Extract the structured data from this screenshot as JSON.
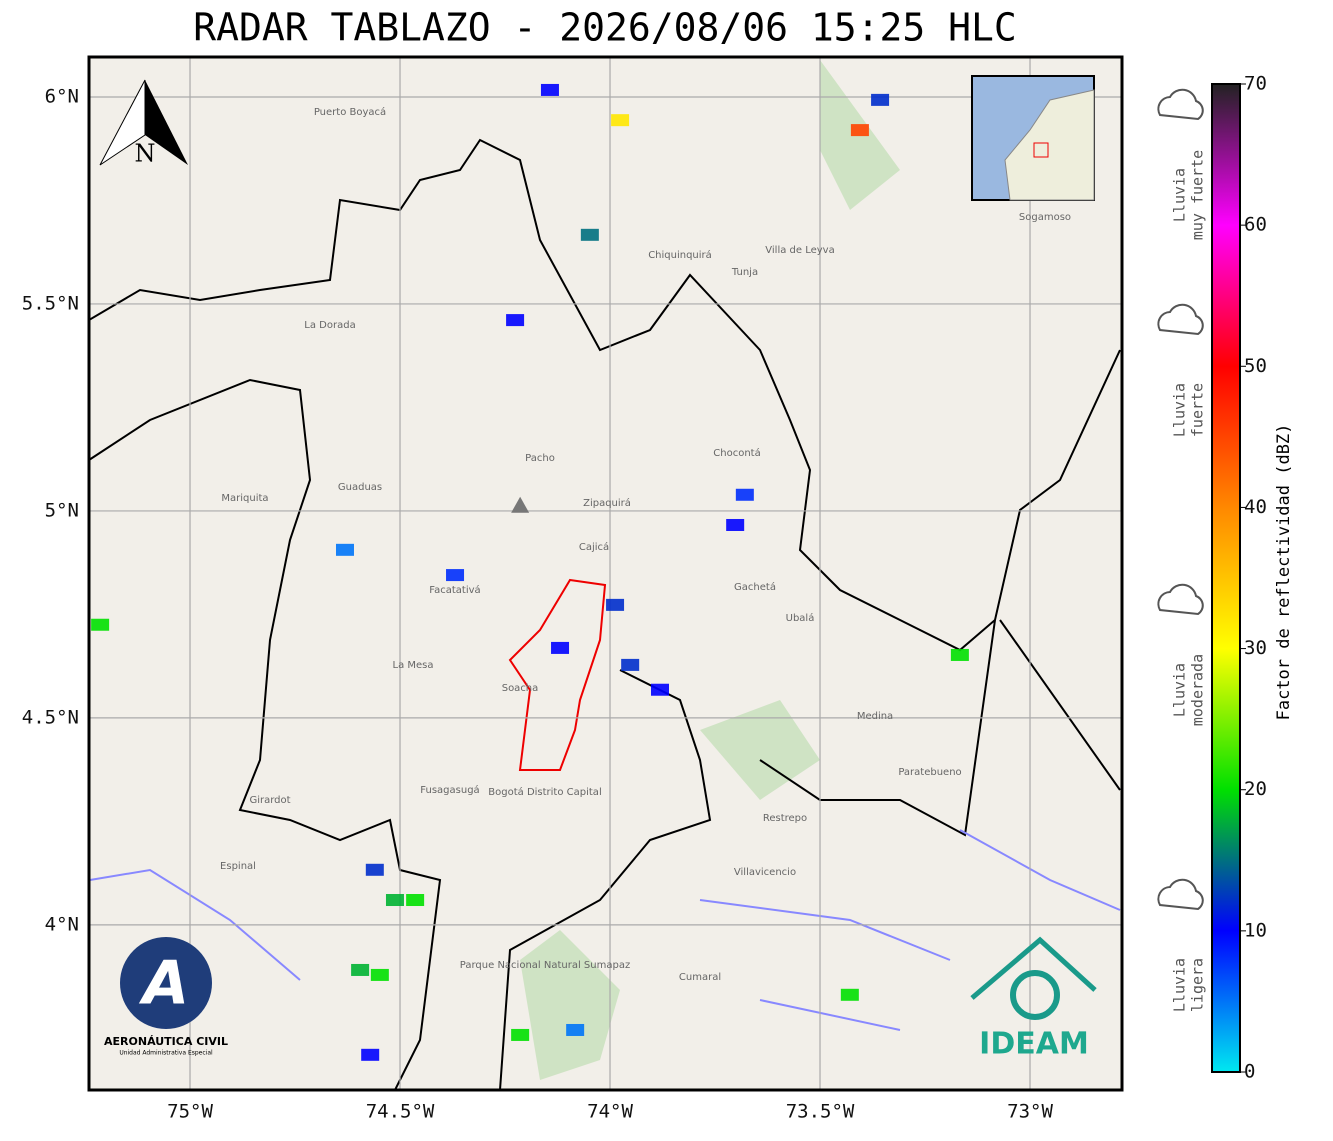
{
  "title": "RADAR TABLAZO - 2026/08/06 15:25 HLC",
  "map": {
    "xlim": [
      -75.2405,
      -72.781
    ],
    "ylim": [
      3.601,
      6.0966
    ],
    "xticks": [
      {
        "value": -75,
        "label": "75°W"
      },
      {
        "value": -74.5,
        "label": "74.5°W"
      },
      {
        "value": -74,
        "label": "74°W"
      },
      {
        "value": -73.5,
        "label": "73.5°W"
      },
      {
        "value": -73,
        "label": "73°W"
      }
    ],
    "yticks": [
      {
        "value": 4,
        "label": "4°N"
      },
      {
        "value": 4.5,
        "label": "4.5°N"
      },
      {
        "value": 5,
        "label": "5°N"
      },
      {
        "value": 5.5,
        "label": "5.5°N"
      },
      {
        "value": 6,
        "label": "6°N"
      }
    ],
    "grid": true,
    "radar_site": {
      "lon": -74.214,
      "lat": 5.01
    },
    "places": [
      "Zipaquirá",
      "Facatativá",
      "Girardot",
      "Fusagasugá",
      "Villavicencio",
      "La Mesa",
      "Soacha",
      "Cajicá",
      "Guaduas",
      "La Dorada",
      "Puerto Boyacá",
      "Sogamoso",
      "Chocontá",
      "Gachetá",
      "Ubalá",
      "Medina",
      "Paratebueno",
      "Restrepo",
      "Cumaral",
      "Espinal",
      "Villa de Leyva",
      "Tunja",
      "Chiquinquirá",
      "Pacho",
      "Mariquita"
    ],
    "park": "Parque Nacional Natural Sumapaz",
    "capital": "Bogotá Distrito Capital",
    "north": "N"
  },
  "echoes": {
    "lon": [
      -73.976,
      -74.143,
      -74.226,
      -74.048,
      -73.405,
      -73.357,
      -73.679,
      -73.702,
      -74.369,
      -73.988,
      -74.119,
      -73.952,
      -73.881,
      -74.56,
      -74.512,
      -74.464,
      -74.595,
      -74.548,
      -74.631,
      -73.429,
      -75.214,
      -73.167,
      -74.214,
      -74.083,
      -74.571
    ],
    "lat": [
      5.944,
      6.017,
      5.461,
      5.667,
      5.92,
      5.993,
      5.039,
      4.966,
      4.845,
      4.773,
      4.669,
      4.628,
      4.568,
      4.133,
      4.06,
      4.06,
      3.891,
      3.879,
      4.906,
      3.831,
      4.725,
      4.652,
      3.734,
      3.746,
      3.686
    ],
    "dbz": [
      32,
      10,
      10,
      15,
      45,
      12,
      8,
      10,
      8,
      12,
      10,
      12,
      10,
      12,
      18,
      20,
      18,
      20,
      5,
      20,
      20,
      20,
      20,
      5,
      10
    ]
  },
  "colorbar": {
    "label": "Factor de reflectividad (dBZ)",
    "lim": [
      0,
      70
    ],
    "ticks": [
      0,
      10,
      20,
      30,
      40,
      50,
      60,
      70
    ],
    "colors": [
      "#00e8f0",
      "#0000ff",
      "#00e000",
      "#ffff00",
      "#ff8800",
      "#ff0000",
      "#ff00ff",
      "#222222"
    ]
  },
  "rain_legend": [
    [
      "Lluvia",
      "ligera"
    ],
    [
      "Lluvia",
      "moderada"
    ],
    [
      "Lluvia",
      "fuerte"
    ],
    [
      "Lluvia",
      "muy fuerte"
    ]
  ],
  "logos": {
    "aero": "AERONÁUTICA CIVIL",
    "aero_sub": "Unidad Administrativa Especial",
    "ideam": "IDEAM"
  }
}
